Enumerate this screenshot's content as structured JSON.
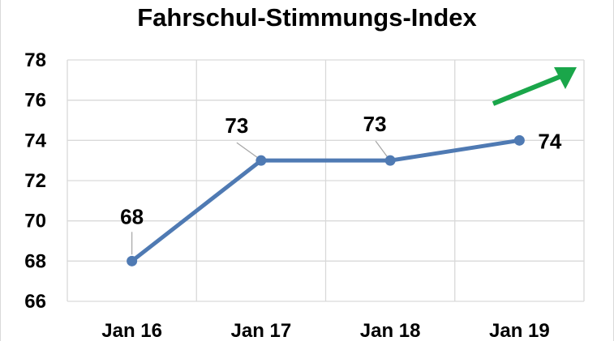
{
  "chart_data": {
    "type": "line",
    "title": "Fahrschul-Stimmungs-Index",
    "categories": [
      "Jan 16",
      "Jan 17",
      "Jan 18",
      "Jan 19"
    ],
    "series": [
      {
        "values": [
          68,
          73,
          73,
          74
        ],
        "color": "#4f7ab3"
      }
    ],
    "data_labels": [
      "68",
      "73",
      "73",
      "74"
    ],
    "yticks": [
      "66",
      "68",
      "70",
      "72",
      "74",
      "76",
      "78"
    ],
    "ylim": [
      66,
      78
    ],
    "xlabel": "",
    "ylabel": "",
    "grid": true,
    "legend": "none",
    "annotation": {
      "icon": "trend-up-arrow-icon",
      "color": "#1aa64a"
    }
  }
}
